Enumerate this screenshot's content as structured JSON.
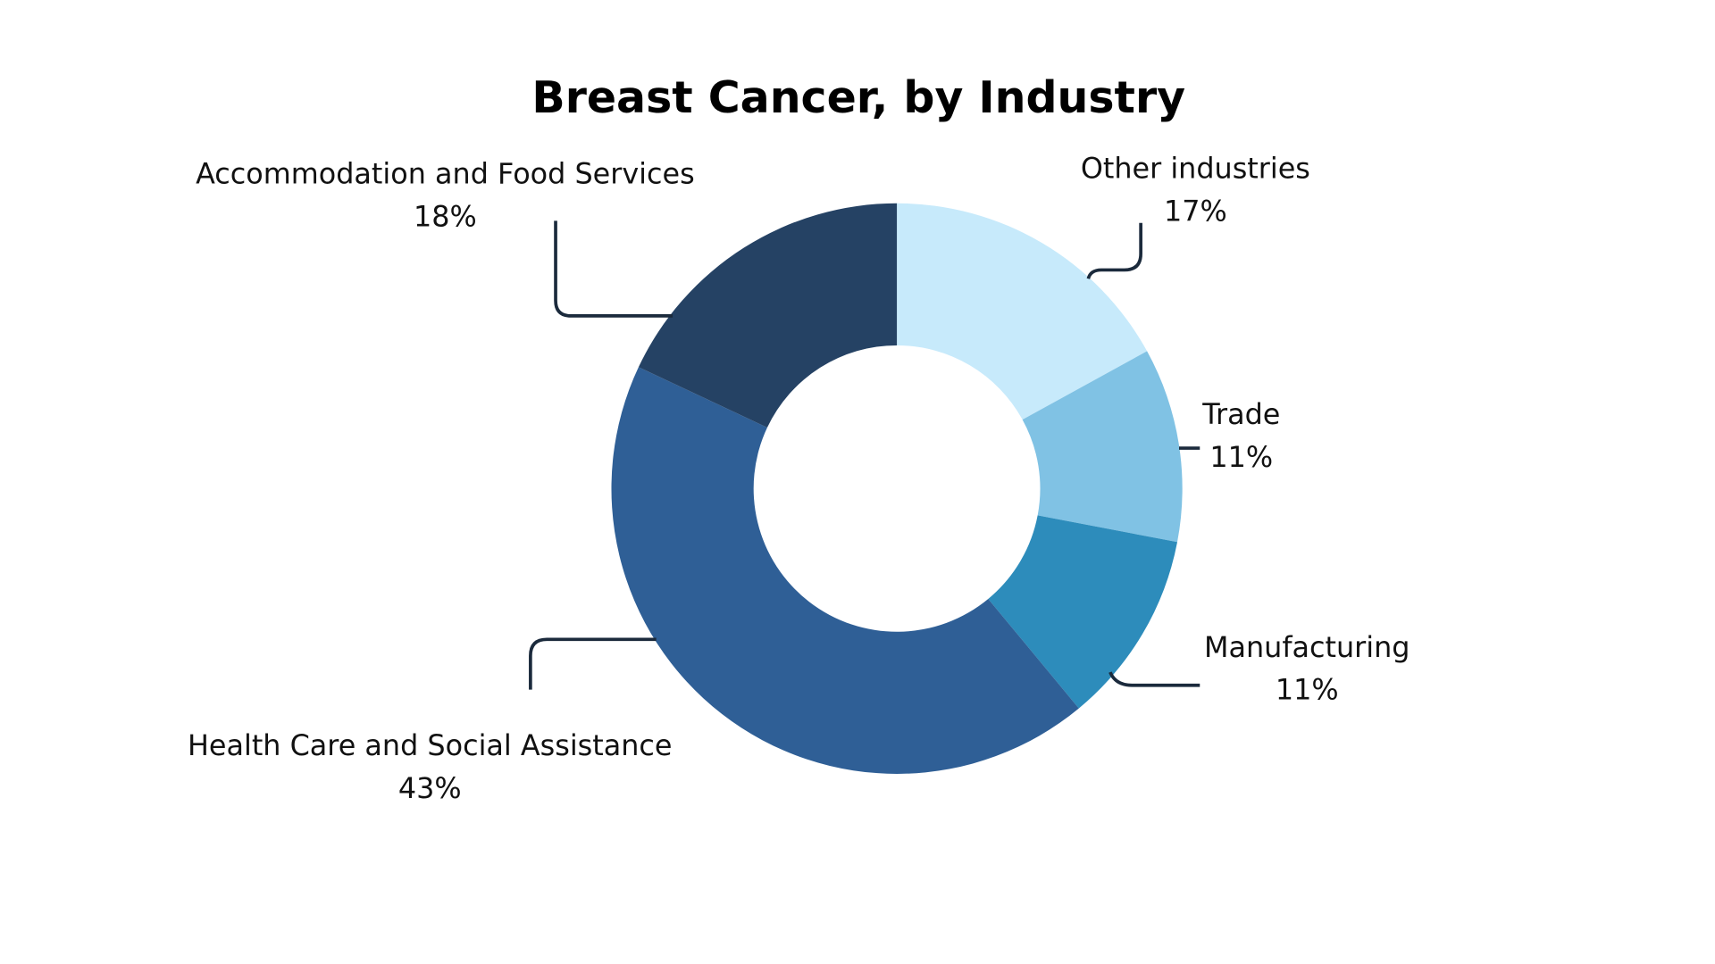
{
  "chart_data": {
    "type": "pie",
    "variant": "donut",
    "title": "Breast Cancer, by Industry",
    "start": "top",
    "direction": "clockwise",
    "slices": [
      {
        "label": "Other industries",
        "value": 17,
        "value_label": "17%",
        "color": "#c7eafb"
      },
      {
        "label": "Trade",
        "value": 11,
        "value_label": "11%",
        "color": "#80c2e4"
      },
      {
        "label": "Manufacturing",
        "value": 11,
        "value_label": "11%",
        "color": "#2d8cbb"
      },
      {
        "label": "Health Care and Social Assistance",
        "value": 43,
        "value_label": "43%",
        "color": "#2f5f96"
      },
      {
        "label": "Accommodation and Food Services",
        "value": 18,
        "value_label": "18%",
        "color": "#254264"
      }
    ]
  }
}
